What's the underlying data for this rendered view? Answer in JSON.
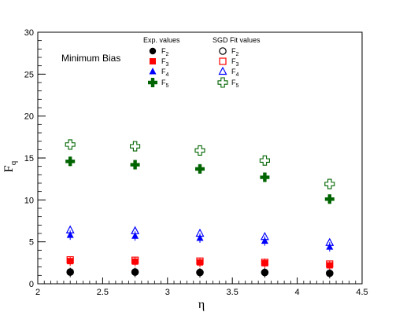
{
  "chart_data": {
    "type": "scatter",
    "xlabel": "η",
    "ylabel": "F",
    "ylabel_sub": "q",
    "xlim": [
      2,
      4.5
    ],
    "ylim": [
      0,
      30
    ],
    "xticks": [
      "2",
      "2.5",
      "3",
      "3.5",
      "4",
      "4.5"
    ],
    "yticks": [
      "0",
      "5",
      "10",
      "15",
      "20",
      "25",
      "30"
    ],
    "annotation": "Minimum Bias",
    "legend_headers": [
      "Exp. values",
      "SGD Fit values"
    ],
    "x": [
      2.25,
      2.75,
      3.25,
      3.75,
      4.25
    ],
    "series": [
      {
        "name": "F",
        "sub": "2",
        "group": "exp",
        "marker": "filled-circle",
        "color": "#000000",
        "values": [
          1.35,
          1.35,
          1.3,
          1.3,
          1.2
        ]
      },
      {
        "name": "F",
        "sub": "3",
        "group": "exp",
        "marker": "filled-square",
        "color": "#ff0000",
        "values": [
          2.7,
          2.65,
          2.55,
          2.45,
          2.2
        ]
      },
      {
        "name": "F",
        "sub": "4",
        "group": "exp",
        "marker": "filled-triangle",
        "color": "#0000ff",
        "values": [
          5.8,
          5.7,
          5.45,
          5.1,
          4.4
        ]
      },
      {
        "name": "F",
        "sub": "5",
        "group": "exp",
        "marker": "filled-cross",
        "color": "#006400",
        "values": [
          14.6,
          14.2,
          13.7,
          12.7,
          10.1
        ]
      },
      {
        "name": "F",
        "sub": "2",
        "group": "fit",
        "marker": "open-circle",
        "color": "#000000",
        "values": [
          1.4,
          1.4,
          1.35,
          1.35,
          1.25
        ]
      },
      {
        "name": "F",
        "sub": "3",
        "group": "fit",
        "marker": "open-square",
        "color": "#ff0000",
        "values": [
          2.85,
          2.8,
          2.7,
          2.55,
          2.35
        ]
      },
      {
        "name": "F",
        "sub": "4",
        "group": "fit",
        "marker": "open-triangle",
        "color": "#0000ff",
        "values": [
          6.4,
          6.3,
          6.0,
          5.6,
          4.9
        ]
      },
      {
        "name": "F",
        "sub": "5",
        "group": "fit",
        "marker": "open-cross",
        "color": "#006400",
        "values": [
          16.6,
          16.4,
          15.9,
          14.7,
          11.9
        ]
      }
    ]
  }
}
